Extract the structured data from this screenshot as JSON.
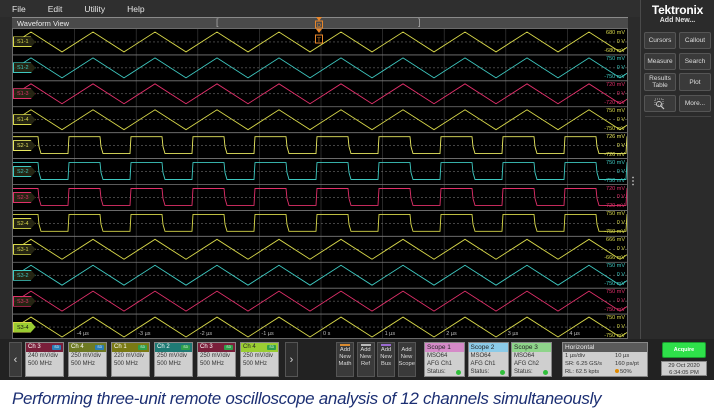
{
  "menu": {
    "items": [
      "File",
      "Edit",
      "Utility",
      "Help"
    ]
  },
  "waveform_view": {
    "title": "Waveform View",
    "trigger_marker": "T",
    "time_ticks": [
      "-4 µs",
      "-3 µs",
      "-2 µs",
      "-1 µs",
      "0 s",
      "1 µs",
      "2 µs",
      "3 µs",
      "4 µs"
    ],
    "channels": [
      {
        "label": "S1-1",
        "color": "#d8d84a",
        "shape": "triangle",
        "top": "680 mV",
        "mid": "0 V",
        "bottom": "-680 mV"
      },
      {
        "label": "S1-2",
        "color": "#3ec8c0",
        "shape": "triangle",
        "top": "750 mV",
        "mid": "0 V",
        "bottom": "-750 mV"
      },
      {
        "label": "S1-3",
        "color": "#e0306a",
        "shape": "triangle",
        "top": "720 mV",
        "mid": "0 V",
        "bottom": "-720 mV"
      },
      {
        "label": "S1-4",
        "color": "#d8d84a",
        "shape": "triangle",
        "top": "750 mV",
        "mid": "0 V",
        "bottom": "-750 mV"
      },
      {
        "label": "S2-1",
        "color": "#e8e860",
        "shape": "square",
        "top": "726 mV",
        "mid": "0 V",
        "bottom": "-726 mV"
      },
      {
        "label": "S2-2",
        "color": "#3ec8c0",
        "shape": "square",
        "top": "750 mV",
        "mid": "0 V",
        "bottom": "-750 mV"
      },
      {
        "label": "S2-3",
        "color": "#e0306a",
        "shape": "square",
        "top": "720 mV",
        "mid": "0 V",
        "bottom": "-720 mV"
      },
      {
        "label": "S2-4",
        "color": "#d8d84a",
        "shape": "square",
        "top": "750 mV",
        "mid": "0 V",
        "bottom": "-750 mV"
      },
      {
        "label": "S3-1",
        "color": "#d8d84a",
        "shape": "triangle",
        "top": "666 mV",
        "mid": "0 V",
        "bottom": "-666 mV"
      },
      {
        "label": "S3-2",
        "color": "#3ec8c0",
        "shape": "triangle",
        "top": "750 mV",
        "mid": "0 V",
        "bottom": "-750 mV"
      },
      {
        "label": "S3-3",
        "color": "#e0306a",
        "shape": "triangle",
        "top": "750 mV",
        "mid": "0 V",
        "bottom": "-750 mV"
      },
      {
        "label": "S3-4",
        "color": "#d8d84a",
        "shape": "triangle",
        "top": "750 mV",
        "mid": "0 V",
        "bottom": "-750 mV"
      }
    ]
  },
  "side_panel": {
    "brand": "Tektronix",
    "add_new": "Add New...",
    "buttons": [
      "Cursors",
      "Callout",
      "Measure",
      "Search",
      "Results Table",
      "Plot",
      "",
      "More..."
    ]
  },
  "channel_badges": [
    {
      "name": "Ch 3",
      "tag": "S3",
      "scale": "240 mV/div",
      "bw": "500 MHz",
      "hdr_color": "#7a1f3a",
      "tag_color": "#2a7fb8"
    },
    {
      "name": "Ch 4",
      "tag": "S3",
      "scale": "250 mV/div",
      "bw": "500 MHz",
      "hdr_color": "#6e7a24",
      "tag_color": "#2a7fb8"
    },
    {
      "name": "Ch 1",
      "tag": "S3",
      "scale": "220 mV/div",
      "bw": "500 MHz",
      "hdr_color": "#7a7a14",
      "tag_color": "#2fa04a"
    },
    {
      "name": "Ch 2",
      "tag": "S3",
      "scale": "250 mV/div",
      "bw": "500 MHz",
      "hdr_color": "#1f7a74",
      "tag_color": "#2fa04a"
    },
    {
      "name": "Ch 3",
      "tag": "S3",
      "scale": "250 mV/div",
      "bw": "500 MHz",
      "hdr_color": "#7a1f3a",
      "tag_color": "#2fa04a"
    },
    {
      "name": "Ch 4",
      "tag": "S3",
      "scale": "250 mV/div",
      "bw": "500 MHz",
      "hdr_color": "#9acd32",
      "tag_color": "#2fa04a"
    }
  ],
  "add_buttons": [
    {
      "label": "Add New Math",
      "bar": "#d88a30"
    },
    {
      "label": "Add New Ref",
      "bar": "#bbbbbb"
    },
    {
      "label": "Add New Bus",
      "bar": "#9a6ad0"
    },
    {
      "label": "Add New Scope",
      "bar": ""
    }
  ],
  "scopes": [
    {
      "title": "Scope 1",
      "model": "MSO64",
      "source": "AFG Ch1",
      "status_label": "Status:",
      "hdr_color": "#d58ac8"
    },
    {
      "title": "Scope 2",
      "model": "MSO64",
      "source": "AFG Ch1",
      "status_label": "Status:",
      "hdr_color": "#8ccbe8"
    },
    {
      "title": "Scope 3",
      "model": "MSO64",
      "source": "AFG Ch2",
      "status_label": "Status:",
      "hdr_color": "#8ed48a"
    }
  ],
  "horizontal": {
    "title": "Horizontal",
    "rows": [
      [
        "1 µs/div",
        "10 µs"
      ],
      [
        "SR: 6.25 GS/s",
        "160 ps/pt"
      ],
      [
        "RL: 62.5 kpts",
        "50%"
      ]
    ]
  },
  "acquire": {
    "label": "Acquire"
  },
  "datetime": {
    "date": "29 Oct 2020",
    "time": "6:34:05 PM"
  },
  "caption": "Performing three-unit remote oscilloscope analysis of 12 channels simultaneously"
}
